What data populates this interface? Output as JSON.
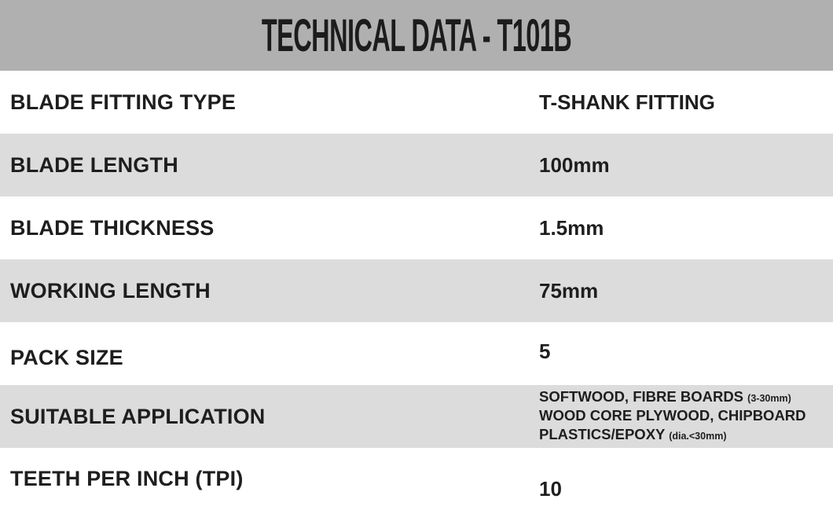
{
  "title": "TECHNICAL DATA - T101B",
  "rows": [
    {
      "label": "BLADE FITTING TYPE",
      "value": "T-SHANK FITTING"
    },
    {
      "label": "BLADE LENGTH",
      "value": "100mm"
    },
    {
      "label": "BLADE THICKNESS",
      "value": "1.5mm"
    },
    {
      "label": "WORKING LENGTH",
      "value": "75mm"
    },
    {
      "label": "PACK SIZE",
      "value": "5"
    },
    {
      "label": "SUITABLE APPLICATION",
      "lines": [
        {
          "main": "SOFTWOOD, FIBRE BOARDS",
          "note": "(3-30mm)"
        },
        {
          "main": "WOOD CORE PLYWOOD, CHIPBOARD",
          "note": ""
        },
        {
          "main": "PLASTICS/EPOXY",
          "note": "(dia.<30mm)"
        }
      ]
    },
    {
      "label": "TEETH PER INCH (TPI)",
      "value": "10"
    }
  ],
  "colors": {
    "header_bg": "#b0b0b0",
    "alt_row_bg": "#dcdcdc",
    "text": "#1e1e1e"
  }
}
